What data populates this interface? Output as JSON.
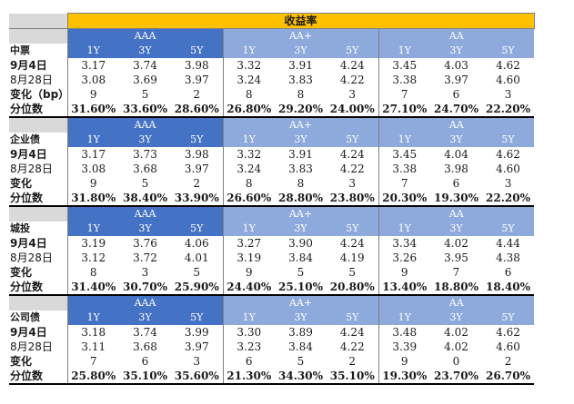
{
  "title": "收益率",
  "ratings": [
    "AAA",
    "AA+",
    "AA"
  ],
  "tenors": [
    "1Y",
    "3Y",
    "5Y"
  ],
  "sections": [
    {
      "name": "中票",
      "rows": [
        {
          "label": "9月4日",
          "values": [
            "3.17",
            "3.74",
            "3.98",
            "3.32",
            "3.91",
            "4.24",
            "3.45",
            "4.03",
            "4.62"
          ]
        },
        {
          "label": "8月28日",
          "values": [
            "3.08",
            "3.69",
            "3.97",
            "3.24",
            "3.83",
            "4.22",
            "3.38",
            "3.97",
            "4.60"
          ]
        },
        {
          "label": "变化（bp）",
          "values": [
            "9",
            "5",
            "2",
            "8",
            "8",
            "3",
            "7",
            "6",
            "3"
          ]
        },
        {
          "label": "分位数",
          "values": [
            "31.60%",
            "33.60%",
            "28.60%",
            "26.80%",
            "29.20%",
            "24.00%",
            "27.10%",
            "24.70%",
            "22.20%"
          ]
        }
      ]
    },
    {
      "name": "企业债",
      "rows": [
        {
          "label": "9月4日",
          "values": [
            "3.17",
            "3.73",
            "3.98",
            "3.32",
            "3.91",
            "4.24",
            "3.45",
            "4.04",
            "4.62"
          ]
        },
        {
          "label": "8月28日",
          "values": [
            "3.08",
            "3.68",
            "3.97",
            "3.24",
            "3.83",
            "4.22",
            "3.38",
            "3.98",
            "4.60"
          ]
        },
        {
          "label": "变化",
          "values": [
            "9",
            "5",
            "2",
            "8",
            "8",
            "3",
            "7",
            "6",
            "3"
          ]
        },
        {
          "label": "分位数",
          "values": [
            "31.80%",
            "38.40%",
            "33.90%",
            "26.60%",
            "28.80%",
            "23.80%",
            "20.30%",
            "19.30%",
            "22.20%"
          ]
        }
      ]
    },
    {
      "name": "城投",
      "rows": [
        {
          "label": "9月4日",
          "values": [
            "3.19",
            "3.76",
            "4.06",
            "3.27",
            "3.90",
            "4.24",
            "3.34",
            "4.02",
            "4.44"
          ]
        },
        {
          "label": "8月28日",
          "values": [
            "3.12",
            "3.72",
            "4.01",
            "3.19",
            "3.84",
            "4.19",
            "3.26",
            "3.95",
            "4.38"
          ]
        },
        {
          "label": "变化",
          "values": [
            "8",
            "3",
            "5",
            "9",
            "5",
            "5",
            "9",
            "7",
            "6"
          ]
        },
        {
          "label": "分位数",
          "values": [
            "31.40%",
            "30.70%",
            "25.90%",
            "24.40%",
            "25.10%",
            "20.80%",
            "13.40%",
            "18.80%",
            "18.40%"
          ]
        }
      ]
    },
    {
      "name": "公司债",
      "rows": [
        {
          "label": "9月4日",
          "values": [
            "3.18",
            "3.74",
            "3.99",
            "3.30",
            "3.89",
            "4.24",
            "3.48",
            "4.02",
            "4.62"
          ]
        },
        {
          "label": "8月28日",
          "values": [
            "3.11",
            "3.68",
            "3.97",
            "3.23",
            "3.84",
            "4.22",
            "3.39",
            "4.02",
            "4.60"
          ]
        },
        {
          "label": "变化",
          "values": [
            "7",
            "6",
            "3",
            "6",
            "5",
            "2",
            "9",
            "0",
            "2"
          ]
        },
        {
          "label": "分位数",
          "values": [
            "25.80%",
            "35.10%",
            "35.60%",
            "21.30%",
            "34.30%",
            "35.10%",
            "19.30%",
            "23.70%",
            "26.70%"
          ]
        }
      ]
    }
  ]
}
